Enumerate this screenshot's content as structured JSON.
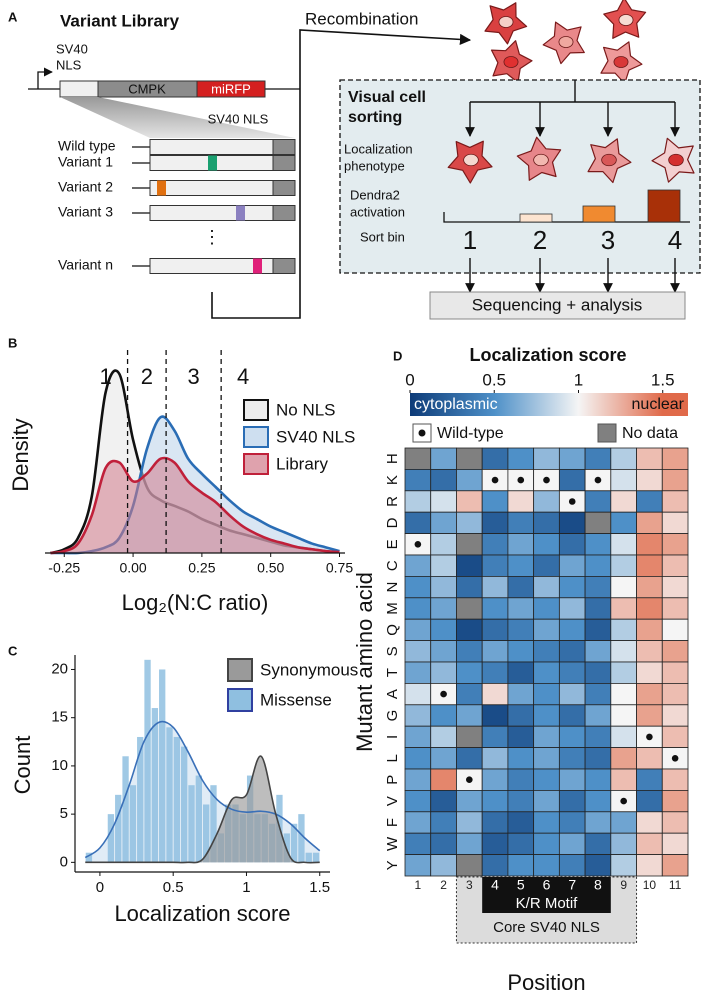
{
  "panel_labels": [
    "A",
    "B",
    "C",
    "D"
  ],
  "diagram": {
    "title": "Variant Library",
    "promoter": [
      "SV40",
      "NLS"
    ],
    "segments": [
      "CMPK",
      "miRFP"
    ],
    "zoom_label": "SV40 NLS",
    "variants": [
      "Wild type",
      "Variant 1",
      "Variant 2",
      "Variant 3",
      "Variant n"
    ],
    "ellipsis": "⋮",
    "recombination": "Recombination",
    "sorting_title": [
      "Visual cell",
      "sorting"
    ],
    "row_labels": [
      [
        "Localization",
        "phenotype"
      ],
      [
        "Dendra2",
        "activation"
      ],
      [
        "Sort bin"
      ]
    ],
    "bins": [
      "1",
      "2",
      "3",
      "4"
    ],
    "output": "Sequencing + analysis"
  },
  "chart_data": [
    {
      "type": "density",
      "xlabel": "Log₂(N:C ratio)",
      "ylabel": "Density",
      "x": [
        -0.3,
        -0.25,
        -0.2,
        -0.15,
        -0.1,
        -0.05,
        0,
        0.05,
        0.1,
        0.15,
        0.2,
        0.25,
        0.3,
        0.35,
        0.4,
        0.45,
        0.5,
        0.55,
        0.6,
        0.65,
        0.7,
        0.75
      ],
      "series": [
        {
          "name": "No NLS",
          "color": "#111111",
          "fill": "#e6e6e6",
          "values": [
            0.0,
            0.02,
            0.08,
            0.3,
            0.85,
            0.95,
            0.6,
            0.35,
            0.28,
            0.25,
            0.22,
            0.18,
            0.15,
            0.12,
            0.1,
            0.08,
            0.06,
            0.04,
            0.03,
            0.02,
            0.01,
            0.005
          ]
        },
        {
          "name": "SV40 NLS",
          "color": "#2a6db5",
          "fill": "#b9d2ea",
          "values": [
            0,
            0,
            0,
            0.01,
            0.03,
            0.08,
            0.25,
            0.55,
            0.72,
            0.65,
            0.5,
            0.42,
            0.35,
            0.28,
            0.22,
            0.18,
            0.14,
            0.11,
            0.08,
            0.05,
            0.03,
            0.01
          ]
        },
        {
          "name": "Library",
          "color": "#c0203a",
          "fill": "#d27a8a",
          "values": [
            0,
            0.01,
            0.05,
            0.2,
            0.45,
            0.48,
            0.38,
            0.42,
            0.5,
            0.48,
            0.38,
            0.32,
            0.27,
            0.2,
            0.14,
            0.1,
            0.07,
            0.05,
            0.03,
            0.02,
            0.01,
            0.005
          ]
        }
      ],
      "xlim": [
        -0.32,
        0.77
      ],
      "xticks": [
        -0.25,
        {
          "value": 0,
          "label": "0.00"
        },
        0.25,
        {
          "value": 0.5,
          "label": "0.50"
        },
        0.75
      ],
      "ylim": [
        0,
        1.05
      ],
      "bin_boundaries": [
        -0.02,
        0.12,
        0.32
      ],
      "bin_labels": [
        "1",
        "2",
        "3",
        "4"
      ]
    },
    {
      "type": "histogram",
      "xlabel": "Localization score",
      "ylabel": "Count",
      "bins": [
        -0.1,
        -0.05,
        0,
        0.05,
        0.1,
        0.15,
        0.2,
        0.25,
        0.3,
        0.35,
        0.4,
        0.45,
        0.5,
        0.55,
        0.6,
        0.65,
        0.7,
        0.75,
        0.8,
        0.85,
        0.9,
        0.95,
        1,
        1.05,
        1.1,
        1.15,
        1.2,
        1.25,
        1.3,
        1.35,
        1.4,
        1.45,
        1.5
      ],
      "values": [
        1,
        0,
        0,
        5,
        7,
        11,
        8,
        13,
        21,
        16,
        20,
        14,
        13,
        12,
        8,
        9,
        6,
        8,
        3,
        6,
        6,
        5,
        9,
        5,
        5,
        4,
        7,
        3,
        4,
        5,
        1,
        1
      ],
      "color": "#8fbfe0",
      "curves": {
        "x": [
          -0.1,
          0,
          0.1,
          0.2,
          0.3,
          0.4,
          0.5,
          0.6,
          0.7,
          0.8,
          0.9,
          1.0,
          1.1,
          1.2,
          1.3,
          1.4,
          1.5
        ],
        "series": [
          {
            "name": "Synonymous",
            "color": "#444444",
            "fill": "#9a9a9a",
            "values": [
              0,
              0,
              0,
              0,
              0,
              0,
              0,
              0,
              0.3,
              3,
              6.5,
              7,
              11,
              5,
              0.5,
              0,
              0
            ]
          },
          {
            "name": "Missense",
            "color": "#3a70b8",
            "fill": "#c8dcee",
            "values": [
              0.5,
              1.5,
              4,
              8,
              12.5,
              14.5,
              14,
              11.5,
              8.5,
              6.5,
              5.5,
              5.2,
              5.3,
              5,
              4,
              2.5,
              1.2
            ]
          }
        ]
      },
      "xlim": [
        -0.17,
        1.57
      ],
      "xticks": [
        0,
        0.5,
        1,
        1.5
      ],
      "ylim": [
        -1,
        21.5
      ],
      "yticks": [
        0,
        5,
        10,
        15,
        20
      ]
    },
    {
      "type": "heatmap",
      "title": "Localization score",
      "ylabel": "Mutant amino acid",
      "xlabel": "Position",
      "rows": [
        "H",
        "K",
        "R",
        "D",
        "E",
        "C",
        "N",
        "M",
        "Q",
        "S",
        "T",
        "A",
        "G",
        "I",
        "L",
        "P",
        "V",
        "F",
        "W",
        "Y"
      ],
      "columns": [
        "1",
        "2",
        "3",
        "4",
        "5",
        "6",
        "7",
        "8",
        "9",
        "10",
        "11"
      ],
      "values": [
        [
          null,
          0.6,
          null,
          0.3,
          0.5,
          0.7,
          0.6,
          0.4,
          0.8,
          1.2,
          1.3
        ],
        [
          0.4,
          0.3,
          0.6,
          1.0,
          1.0,
          1.0,
          0.3,
          1.0,
          0.9,
          1.1,
          1.3
        ],
        [
          0.8,
          0.9,
          1.2,
          0.5,
          1.1,
          0.7,
          1.0,
          0.4,
          1.1,
          0.4,
          1.2
        ],
        [
          0.3,
          0.6,
          0.7,
          0.2,
          0.4,
          0.3,
          0.1,
          null,
          0.5,
          1.3,
          1.1
        ],
        [
          1.0,
          0.8,
          null,
          0.4,
          0.6,
          0.5,
          0.3,
          0.5,
          0.9,
          1.4,
          1.3
        ],
        [
          0.6,
          0.8,
          0.1,
          0.4,
          0.5,
          0.3,
          0.6,
          0.5,
          0.8,
          1.4,
          1.2
        ],
        [
          0.5,
          0.7,
          0.3,
          0.7,
          0.3,
          0.7,
          0.5,
          0.4,
          1.0,
          1.3,
          1.1
        ],
        [
          0.5,
          0.6,
          null,
          0.5,
          0.6,
          0.5,
          0.7,
          0.3,
          1.2,
          1.4,
          1.2
        ],
        [
          0.6,
          0.5,
          0.1,
          0.3,
          0.4,
          0.6,
          0.5,
          0.2,
          0.8,
          1.3,
          1.0
        ],
        [
          0.7,
          0.6,
          0.4,
          0.6,
          0.5,
          0.4,
          0.3,
          0.6,
          0.9,
          1.2,
          1.3
        ],
        [
          0.6,
          0.7,
          0.5,
          0.4,
          0.2,
          0.5,
          0.4,
          0.3,
          0.8,
          1.1,
          1.2
        ],
        [
          0.9,
          1.0,
          0.4,
          1.1,
          0.6,
          0.5,
          0.7,
          0.4,
          1.0,
          1.3,
          1.2
        ],
        [
          0.7,
          0.5,
          0.6,
          0.1,
          0.3,
          0.5,
          0.3,
          0.6,
          1.0,
          1.3,
          1.1
        ],
        [
          0.6,
          0.8,
          null,
          0.4,
          0.2,
          0.6,
          0.5,
          0.4,
          0.9,
          1.0,
          1.2
        ],
        [
          0.5,
          0.6,
          0.3,
          0.7,
          0.5,
          0.6,
          0.4,
          0.3,
          1.3,
          1.2,
          1.0
        ],
        [
          0.6,
          1.4,
          1.0,
          0.6,
          0.4,
          0.5,
          0.6,
          0.5,
          1.2,
          0.4,
          1.2
        ],
        [
          0.5,
          0.2,
          0.6,
          0.5,
          0.4,
          0.6,
          0.3,
          0.5,
          1.0,
          0.3,
          1.3
        ],
        [
          0.6,
          0.4,
          0.7,
          0.3,
          0.2,
          0.5,
          0.4,
          0.6,
          0.6,
          1.1,
          1.2
        ],
        [
          0.4,
          0.3,
          0.6,
          0.2,
          0.3,
          0.5,
          0.6,
          0.3,
          0.7,
          1.2,
          1.1
        ],
        [
          0.6,
          0.7,
          null,
          0.3,
          0.5,
          0.5,
          0.4,
          0.2,
          0.8,
          1.1,
          1.3
        ]
      ],
      "wild_type": [
        "E",
        "A",
        "P",
        "K",
        "K",
        "K",
        "R",
        "K",
        "V",
        "I",
        "L"
      ],
      "no_data_color": "#808080",
      "colorscale": [
        {
          "value": 0,
          "color": "#0d3b78"
        },
        {
          "value": 0.5,
          "color": "#4e90c8"
        },
        {
          "value": 1,
          "color": "#f5f5f5"
        },
        {
          "value": 1.5,
          "color": "#e06a4a"
        }
      ],
      "colorbar_lim": [
        0,
        1.65
      ],
      "colorbar_ticks": [
        0,
        0.5,
        1,
        1.5
      ],
      "colorbar_labels": [
        "cytoplasmic",
        "nuclear"
      ],
      "legend": [
        "Wild-type",
        "No data"
      ],
      "motif": {
        "label": "K/R Motif",
        "start": "4",
        "end": "8"
      },
      "region": {
        "label": "Core SV40 NLS",
        "start": "3",
        "end": "9"
      }
    }
  ]
}
